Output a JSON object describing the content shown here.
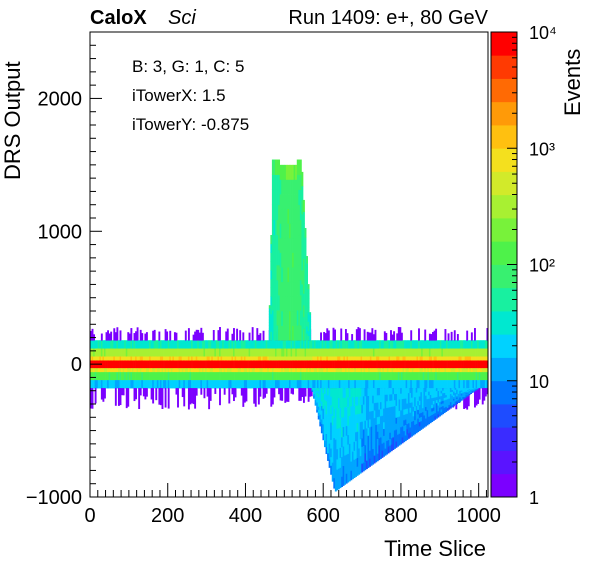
{
  "chart_data": {
    "type": "heatmap",
    "header": {
      "brand": "CaloX",
      "subtitle": "Sci",
      "run_info": "Run 1409: e+, 80 GeV"
    },
    "xlabel": "Time Slice",
    "ylabel": "DRS Output",
    "zlabel": "Events",
    "xlim": [
      0,
      1024
    ],
    "ylim": [
      -1000,
      2500
    ],
    "z_scale": "log",
    "zlim": [
      1,
      10000
    ],
    "x_ticks": [
      {
        "value": 0,
        "label": "0"
      },
      {
        "value": 200,
        "label": "200"
      },
      {
        "value": 400,
        "label": "400"
      },
      {
        "value": 600,
        "label": "600"
      },
      {
        "value": 800,
        "label": "800"
      },
      {
        "value": 1000,
        "label": "1000"
      }
    ],
    "y_ticks": [
      {
        "value": -1000,
        "label": "−1000"
      },
      {
        "value": 0,
        "label": "0"
      },
      {
        "value": 1000,
        "label": "1000"
      },
      {
        "value": 2000,
        "label": "2000"
      }
    ],
    "z_ticks": [
      {
        "value": 1,
        "label": "1"
      },
      {
        "value": 10,
        "label": "10"
      },
      {
        "value": 100,
        "label": "10²"
      },
      {
        "value": 1000,
        "label": "10³"
      },
      {
        "value": 10000,
        "label": "10⁴"
      }
    ],
    "info_box": [
      "B: 3, G: 1, C: 5",
      "iTowerX: 1.5",
      "iTowerY: -0.875"
    ],
    "grid": false,
    "colorbar_position": "right",
    "palette": [
      "#7b00ff",
      "#5a14ff",
      "#3a2cff",
      "#1e4cff",
      "#0077ff",
      "#00a6ff",
      "#00d2ff",
      "#00e8d0",
      "#18f0a0",
      "#38f070",
      "#4ef24a",
      "#78f23a",
      "#a8f032",
      "#d2ea2a",
      "#f4e01e",
      "#ffc010",
      "#ff9a08",
      "#ff6a04",
      "#ff3a02",
      "#ff0000"
    ],
    "regions": [
      {
        "name": "baseline band",
        "x": [
          0,
          1024
        ],
        "y": [
          -60,
          60
        ],
        "counts": 8000
      },
      {
        "name": "upper baseline halo",
        "x": [
          0,
          1024
        ],
        "y": [
          60,
          180
        ],
        "counts": 300
      },
      {
        "name": "lower baseline halo",
        "x": [
          0,
          1024
        ],
        "y": [
          -180,
          -60
        ],
        "counts": 120
      },
      {
        "name": "positive pulse",
        "x": [
          460,
          570
        ],
        "y": [
          180,
          1500
        ],
        "counts": 40
      },
      {
        "name": "negative undershoot",
        "x": [
          570,
          1000
        ],
        "y": [
          -960,
          -180
        ],
        "counts": 12
      }
    ]
  }
}
